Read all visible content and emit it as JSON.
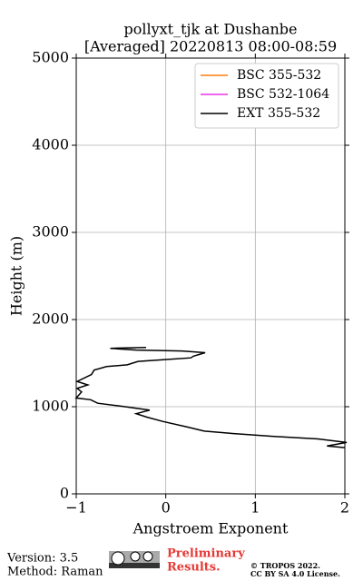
{
  "chart_data": {
    "type": "line",
    "title": [
      "pollyxt_tjk at Dushanbe",
      "[Averaged] 20220813 08:00-08:59"
    ],
    "x_label": "Angstroem Exponent",
    "y_label": "Height (m)",
    "xlim": [
      -1,
      2
    ],
    "xticks": [
      {
        "value": -1,
        "label": "−1"
      },
      0,
      1,
      2
    ],
    "ylim": [
      0,
      5000
    ],
    "yticks": [
      0,
      1000,
      2000,
      3000,
      4000,
      5000
    ],
    "grid": true,
    "legend": "upper right",
    "series": [
      {
        "name": "BSC 355-532",
        "color": "#ff7f0e",
        "x": [],
        "values": []
      },
      {
        "name": "BSC 532-1064",
        "color": "#e535e5",
        "x": [],
        "values": []
      },
      {
        "name": "EXT 355-532",
        "color": "#000000",
        "x": [
          -0.22,
          -0.62,
          -0.33,
          0.18,
          0.44,
          0.31,
          0.28,
          -0.03,
          -0.31,
          -0.43,
          -0.66,
          -0.8,
          -0.83,
          -0.99,
          -0.87,
          -0.99,
          -0.94,
          -1.0,
          -0.84,
          -0.76,
          -0.53,
          -0.18,
          -0.33,
          -0.21,
          -0.03,
          0.23,
          0.43,
          0.78,
          1.19,
          1.7,
          2.02,
          1.8,
          2.0
        ],
        "values": [
          1680,
          1670,
          1650,
          1640,
          1620,
          1580,
          1560,
          1540,
          1520,
          1480,
          1460,
          1420,
          1370,
          1290,
          1250,
          1210,
          1170,
          1100,
          1080,
          1040,
          1010,
          960,
          920,
          880,
          830,
          770,
          720,
          690,
          660,
          630,
          590,
          550,
          530
        ]
      }
    ]
  },
  "footer": {
    "version": "Version: 3.5",
    "method": "Method: Raman",
    "status": [
      "Preliminary",
      "Results."
    ],
    "copyright": [
      "© TROPOS 2022.",
      "CC BY SA 4.0 License."
    ]
  }
}
